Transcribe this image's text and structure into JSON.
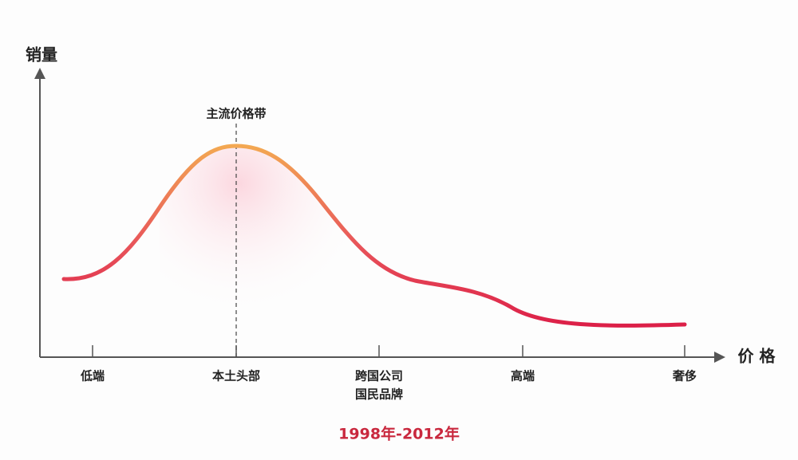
{
  "axes": {
    "y_label": "销量",
    "x_label": "价 格"
  },
  "annotation": "主流价格带",
  "x_categories": [
    {
      "lines": [
        "低端"
      ]
    },
    {
      "lines": [
        "本土头部"
      ]
    },
    {
      "lines": [
        "跨国公司",
        "国民品牌"
      ]
    },
    {
      "lines": [
        "高端"
      ]
    },
    {
      "lines": [
        "奢侈"
      ]
    }
  ],
  "footer": "1998年-2012年"
}
